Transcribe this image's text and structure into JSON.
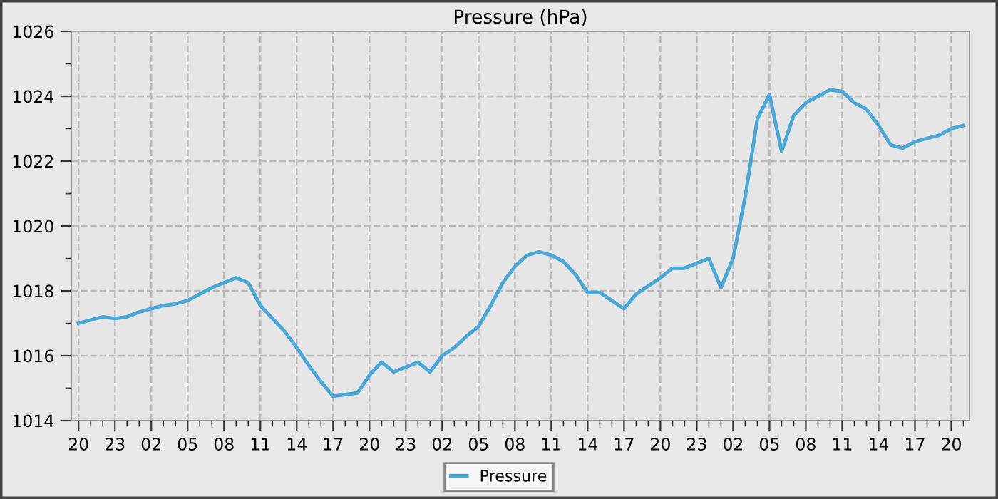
{
  "chart_data": {
    "type": "line",
    "title": "Pressure (hPa)",
    "categories": [
      "20",
      null,
      null,
      "23",
      null,
      null,
      "02",
      null,
      null,
      "05",
      null,
      null,
      "08",
      null,
      null,
      "11",
      null,
      null,
      "14",
      null,
      null,
      "17",
      null,
      null,
      "20",
      null,
      null,
      "23",
      null,
      null,
      "02",
      null,
      null,
      "05",
      null,
      null,
      "08",
      null,
      null,
      "11",
      null,
      null,
      "14",
      null,
      null,
      "17",
      null,
      null,
      "20",
      null,
      null,
      "23",
      null,
      null,
      "02",
      null,
      null,
      "05",
      null,
      null,
      "08",
      null,
      null,
      "11",
      null,
      null,
      "14",
      null,
      null,
      "17",
      null,
      null,
      "20",
      null
    ],
    "series": [
      {
        "name": "Pressure",
        "color": "#4aa8d8",
        "values": [
          1017.0,
          1017.1,
          1017.2,
          1017.15,
          1017.2,
          1017.35,
          1017.45,
          1017.55,
          1017.6,
          1017.7,
          1017.9,
          1018.1,
          1018.25,
          1018.4,
          1018.25,
          1017.55,
          1017.15,
          1016.75,
          1016.25,
          1015.7,
          1015.2,
          1014.75,
          1014.8,
          1014.85,
          1015.4,
          1015.8,
          1015.5,
          1015.65,
          1015.8,
          1015.5,
          1016.0,
          1016.25,
          1016.6,
          1016.9,
          1017.55,
          1018.25,
          1018.75,
          1019.1,
          1019.2,
          1019.1,
          1018.9,
          1018.5,
          1017.95,
          1017.95,
          1017.7,
          1017.45,
          1017.9,
          1018.15,
          1018.4,
          1018.7,
          1018.7,
          1018.85,
          1019.0,
          1018.1,
          1019.0,
          1020.9,
          1023.3,
          1024.05,
          1022.3,
          1023.4,
          1023.8,
          1024.0,
          1024.2,
          1024.15,
          1023.8,
          1023.6,
          1023.1,
          1022.5,
          1022.4,
          1022.6,
          1022.7,
          1022.8,
          1023.0,
          1023.1
        ]
      }
    ],
    "ylim": [
      1014,
      1026
    ],
    "yticks": [
      1014,
      {
        "value": 1015,
        "label": null
      },
      1016,
      {
        "value": 1017,
        "label": null
      },
      1018,
      {
        "value": 1019,
        "label": null
      },
      1020,
      {
        "value": 1021,
        "label": null
      },
      1022,
      {
        "value": 1023,
        "label": null
      },
      1024,
      {
        "value": 1025,
        "label": null
      },
      1026
    ],
    "grid": true,
    "legend": "bottom",
    "line_style": "solid",
    "marker": "none"
  }
}
